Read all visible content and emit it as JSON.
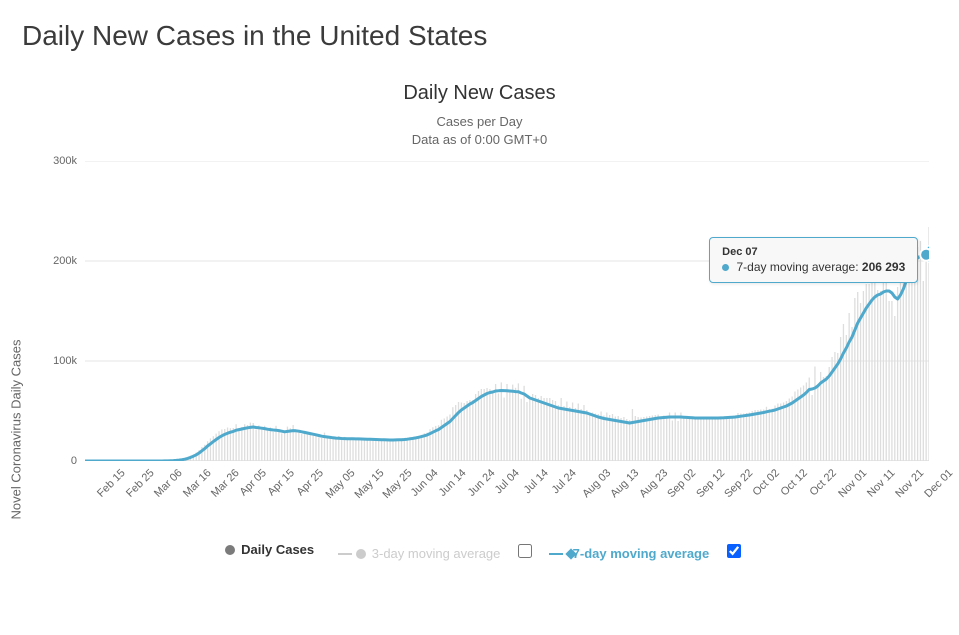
{
  "page_title": "Daily New Cases in the United States",
  "chart": {
    "type": "line",
    "title": "Daily New Cases",
    "subtitle_line1": "Cases per Day",
    "subtitle_line2": "Data as of 0:00 GMT+0",
    "y_axis_title": "Novel Coronavirus Daily Cases",
    "background_color": "#ffffff",
    "grid_color": "#e6e6e6",
    "axis_color": "#cccccc",
    "line_color": "#4fa9cc",
    "line_width": 3,
    "bar_color": "#dddddd",
    "last_marker_color": "#41b1e6",
    "tick_font_size": 11,
    "ylim": [
      0,
      300000
    ],
    "y_ticks": [
      {
        "v": 0,
        "label": "0"
      },
      {
        "v": 100000,
        "label": "100k"
      },
      {
        "v": 200000,
        "label": "200k"
      },
      {
        "v": 300000,
        "label": "300k"
      }
    ],
    "x_labels": [
      "Feb 15",
      "Feb 25",
      "Mar 06",
      "Mar 16",
      "Mar 26",
      "Apr 05",
      "Apr 15",
      "Apr 25",
      "May 05",
      "May 15",
      "May 25",
      "Jun 04",
      "Jun 14",
      "Jun 24",
      "Jul 04",
      "Jul 14",
      "Jul 24",
      "Aug 03",
      "Aug 13",
      "Aug 23",
      "Sep 02",
      "Sep 12",
      "Sep 22",
      "Oct 02",
      "Oct 12",
      "Oct 22",
      "Nov 01",
      "Nov 11",
      "Nov 21",
      "Dec 01"
    ],
    "n_points": 297,
    "avg7": [
      0,
      0,
      0,
      0,
      0,
      0,
      0,
      0,
      0,
      0,
      0,
      0,
      0,
      0,
      0,
      0,
      0,
      0,
      0,
      0,
      0,
      0,
      0,
      0,
      0,
      0,
      20,
      40,
      80,
      140,
      260,
      380,
      600,
      900,
      1300,
      1800,
      2600,
      3600,
      4800,
      6200,
      8000,
      10200,
      12400,
      15000,
      17200,
      19400,
      21500,
      23500,
      25200,
      26600,
      27800,
      28800,
      29600,
      30800,
      31400,
      32000,
      32600,
      33200,
      33600,
      34000,
      33500,
      33200,
      32800,
      32400,
      31800,
      31400,
      31000,
      30800,
      30400,
      29800,
      29200,
      29600,
      30000,
      30400,
      30200,
      29800,
      29200,
      28600,
      28000,
      27400,
      26800,
      26200,
      25500,
      24800,
      24400,
      24000,
      23600,
      23200,
      22900,
      22700,
      22500,
      22400,
      22300,
      22250,
      22200,
      22150,
      22100,
      22000,
      21900,
      21800,
      21700,
      21600,
      21500,
      21400,
      21300,
      21200,
      21100,
      21000,
      21000,
      21100,
      21200,
      21300,
      21500,
      21800,
      22200,
      22600,
      23100,
      23700,
      24400,
      25200,
      26100,
      27400,
      28800,
      30200,
      31500,
      33500,
      35500,
      37500,
      39500,
      42500,
      45500,
      48500,
      51000,
      53000,
      55000,
      57000,
      58500,
      60500,
      62500,
      64500,
      66000,
      67500,
      68500,
      69000,
      70000,
      70200,
      70500,
      70400,
      70200,
      70000,
      69800,
      69400,
      69200,
      68000,
      67000,
      65000,
      63000,
      62000,
      61000,
      60000,
      59000,
      58000,
      57000,
      56000,
      55000,
      54000,
      53000,
      52500,
      52000,
      51500,
      51000,
      50500,
      50000,
      49500,
      49000,
      48500,
      48000,
      47000,
      46000,
      45000,
      44000,
      43250,
      42500,
      42000,
      41500,
      41000,
      40500,
      40000,
      39500,
      39000,
      38500,
      38000,
      38500,
      39000,
      39500,
      40000,
      40500,
      41000,
      41500,
      42000,
      42500,
      43000,
      43250,
      43500,
      43750,
      44000,
      44000,
      44000,
      44000,
      44000,
      43800,
      43600,
      43400,
      43200,
      43000,
      43000,
      43000,
      43000,
      43000,
      43000,
      43000,
      43000,
      43000,
      43100,
      43200,
      43400,
      43600,
      43800,
      44000,
      44400,
      44800,
      45200,
      45600,
      46000,
      46500,
      47000,
      47500,
      48000,
      48500,
      49200,
      49800,
      50300,
      51000,
      52000,
      53000,
      54000,
      55000,
      56500,
      58000,
      60000,
      62000,
      64000,
      66000,
      68500,
      71500,
      72000,
      73000,
      75000,
      78000,
      80000,
      82000,
      85000,
      89000,
      93000,
      97000,
      102000,
      108000,
      113000,
      119000,
      124000,
      131000,
      138000,
      143000,
      148000,
      153000,
      157000,
      161000,
      164000,
      166000,
      167000,
      169000,
      170000,
      170000,
      168000,
      164000,
      162000,
      166000,
      172000,
      180000,
      188000,
      195000,
      200000,
      203000,
      205000,
      206000,
      206293,
      207000
    ],
    "bars": [
      0,
      0,
      0,
      0,
      0,
      0,
      0,
      0,
      0,
      0,
      0,
      0,
      0,
      0,
      0,
      0,
      0,
      0,
      0,
      0,
      0,
      0,
      0,
      0,
      0,
      0,
      20,
      60,
      120,
      200,
      380,
      500,
      900,
      1300,
      1800,
      2400,
      3600,
      5200,
      6600,
      8400,
      10800,
      14000,
      16200,
      19800,
      22600,
      24800,
      27400,
      29800,
      31600,
      32000,
      33500,
      32800,
      33000,
      36800,
      32600,
      34000,
      36800,
      36000,
      38400,
      38000,
      31400,
      35600,
      33600,
      35200,
      31600,
      33600,
      29000,
      35200,
      31600,
      27600,
      29600,
      34400,
      32800,
      36000,
      30200,
      29400,
      27000,
      29000,
      27600,
      27600,
      27000,
      27000,
      23600,
      23000,
      28400,
      23600,
      23200,
      24000,
      23000,
      25000,
      22500,
      24100,
      22900,
      23000,
      22500,
      22500,
      23000,
      21800,
      22500,
      22000,
      22400,
      21800,
      22300,
      22000,
      22200,
      21900,
      22100,
      21800,
      22100,
      21800,
      22500,
      21800,
      22500,
      22400,
      24100,
      23400,
      24500,
      25300,
      26100,
      27700,
      28400,
      31800,
      33800,
      35100,
      35800,
      41200,
      42500,
      44500,
      46500,
      53800,
      56000,
      59000,
      58500,
      58000,
      60000,
      61000,
      61000,
      67000,
      70000,
      72000,
      72000,
      73000,
      72000,
      69000,
      77000,
      67600,
      78600,
      63400,
      77000,
      70400,
      76400,
      73200,
      77600,
      62200,
      75200,
      59000,
      63000,
      67000,
      66000,
      63000,
      65000,
      63000,
      63000,
      63000,
      61000,
      60000,
      56000,
      63000,
      55000,
      59500,
      54000,
      58500,
      53000,
      57500,
      52000,
      56000,
      51000,
      48500,
      48500,
      47500,
      47000,
      49500,
      45500,
      48500,
      46000,
      47000,
      44500,
      45000,
      43000,
      44000,
      42000,
      41000,
      52000,
      45000,
      44000,
      43500,
      44000,
      44500,
      45000,
      45500,
      46000,
      46500,
      44500,
      45500,
      44250,
      48500,
      40500,
      48500,
      40000,
      48500,
      43400,
      44000,
      45000,
      44000,
      42600,
      43400,
      43400,
      43400,
      43400,
      43400,
      43400,
      43400,
      43400,
      44400,
      43400,
      45000,
      44500,
      45000,
      45500,
      48000,
      47500,
      47500,
      48000,
      48500,
      50000,
      51000,
      51000,
      51500,
      51500,
      54200,
      52100,
      52300,
      55500,
      57500,
      57500,
      58500,
      60000,
      62500,
      64500,
      69500,
      71500,
      73500,
      75500,
      78500,
      83500,
      66000,
      94500,
      77000,
      89000,
      84000,
      85000,
      94000,
      104000,
      109000,
      108000,
      124000,
      137000,
      126000,
      148000,
      134000,
      163000,
      169000,
      158000,
      170000,
      177000,
      177000,
      183000,
      179000,
      171000,
      170000,
      183000,
      178000,
      160000,
      160000,
      145000,
      174000,
      204000,
      218000,
      214000,
      223000,
      213000,
      209000,
      214000,
      220000,
      180000,
      200000,
      234000
    ]
  },
  "tooltip": {
    "date": "Dec 07",
    "series_label": "7-day moving average:",
    "value_text": "206 293",
    "dot_color": "#4fa9cc"
  },
  "highlight_index": 295,
  "legend": {
    "daily": {
      "label": "Daily Cases",
      "color": "#7b7b7b",
      "checked": false,
      "bold": true
    },
    "avg3": {
      "label": "3-day moving average",
      "color": "#cccccc",
      "checked": false,
      "bold": false
    },
    "avg7": {
      "label": "7-day moving average",
      "color": "#4fa9cc",
      "checked": true,
      "bold": true
    }
  }
}
